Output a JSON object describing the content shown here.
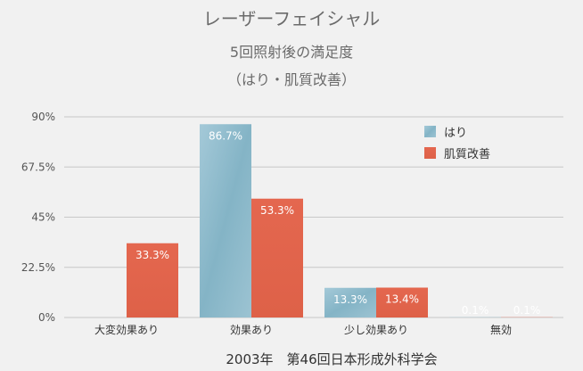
{
  "chart_data": {
    "type": "bar",
    "title": "レーザーフェイシャル",
    "subtitle": "5回照射後の満足度",
    "subtitle2": "（はり・肌質改善）",
    "categories": [
      "大変効果あり",
      "効果あり",
      "少し効果あり",
      "無効"
    ],
    "series": [
      {
        "name": "はり",
        "values": [
          0,
          86.7,
          13.3,
          0.1
        ],
        "labels": [
          "",
          "86.7%",
          "13.3%",
          "0.1%"
        ],
        "color": "#8fbccd"
      },
      {
        "name": "肌質改善",
        "values": [
          33.3,
          53.3,
          13.4,
          0.1
        ],
        "labels": [
          "33.3%",
          "53.3%",
          "13.4%",
          "0.1%"
        ],
        "color": "#e0644c"
      }
    ],
    "yticks": [
      "0%",
      "22.5%",
      "45%",
      "67.5%",
      "90%"
    ],
    "ylim": [
      0,
      90
    ],
    "grid": true,
    "legend_position": "top-right",
    "footer": "2003年　第46回日本形成外科学会"
  }
}
